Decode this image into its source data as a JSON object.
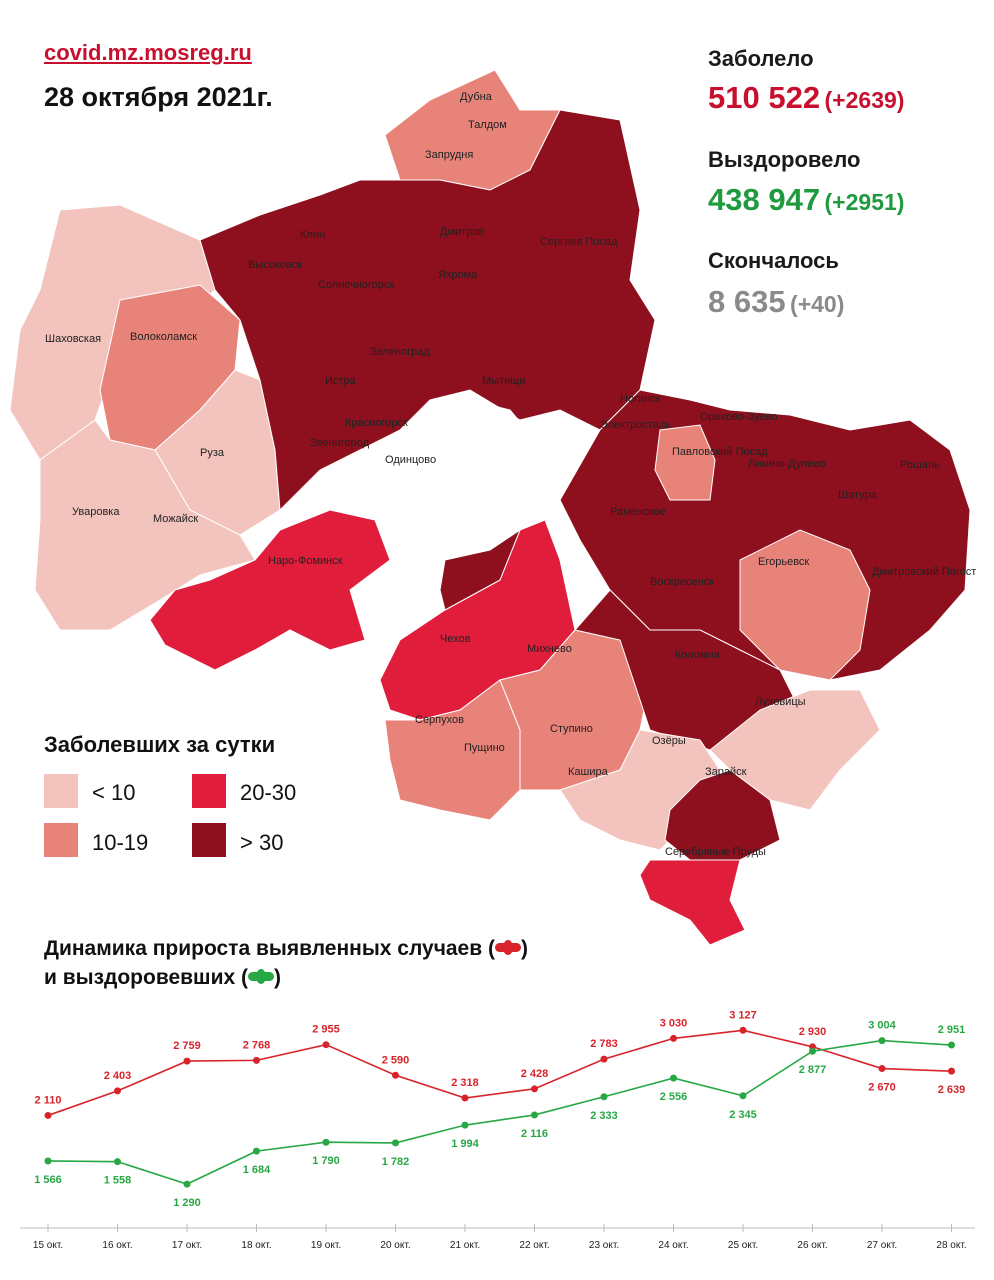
{
  "header": {
    "source": "covid.mz.mosreg.ru",
    "date": "28 октября 2021г."
  },
  "stats": {
    "infected": {
      "label": "Заболело",
      "value": "510 522",
      "delta": "(+2639)"
    },
    "recovered": {
      "label": "Выздоровело",
      "value": "438 947",
      "delta": "(+2951)"
    },
    "deaths": {
      "label": "Скончалось",
      "value": "8 635",
      "delta": "(+40)"
    }
  },
  "legend": {
    "title": "Заболевших за сутки",
    "items": [
      {
        "label": "< 10",
        "color": "#f2c4bd"
      },
      {
        "label": "10-19",
        "color": "#e8837a"
      },
      {
        "label": "20-30",
        "color": "#e01e3c"
      },
      {
        "label": "> 30",
        "color": "#8e0f1d"
      }
    ]
  },
  "map": {
    "labels": [
      "Дубна",
      "Запрудня",
      "Талдом",
      "Клин",
      "Дмитров",
      "Сергиев Посад",
      "Высоковск",
      "Яхрома",
      "Солнечногорск",
      "Шаховская",
      "Волоколамск",
      "Зеленоград",
      "Истра",
      "Мытищи",
      "Ногинск",
      "Красногорск",
      "Электросталь",
      "Орехово-Зуево",
      "Звенигород",
      "Одинцово",
      "Павловский Посад",
      "Ликино-Дулёво",
      "Рошаль",
      "Руза",
      "Шатура",
      "Уваровка",
      "Можайск",
      "Раменское",
      "Наро-Фоминск",
      "Егорьевск",
      "Дмитровский Погост",
      "Воскресенск",
      "Чехов",
      "Михнево",
      "Коломна",
      "Серпухов",
      "Луховицы",
      "Пущино",
      "Ступино",
      "Озёры",
      "Кашира",
      "Зарайск",
      "Серебряные Пруды"
    ]
  },
  "dynamics": {
    "title_line1": "Динамика прироста выявленных случаев (",
    "title_line1_end": ")",
    "title_line2": "и выздоровевших (",
    "title_line2_end": ")"
  },
  "chart_data": {
    "type": "line",
    "x": [
      "15 окт.",
      "16 окт.",
      "17 окт.",
      "18 окт.",
      "19 окт.",
      "20 окт.",
      "21 окт.",
      "22 окт.",
      "23 окт.",
      "24 окт.",
      "25 окт.",
      "26 окт.",
      "27 окт.",
      "28 окт."
    ],
    "series": [
      {
        "color": "#d8232a",
        "values": [
          2110,
          2403,
          2759,
          2768,
          2955,
          2590,
          2318,
          2428,
          2783,
          3030,
          3127,
          2930,
          2670,
          2639
        ],
        "labels": [
          "2 110",
          "2 403",
          "2 759",
          "2 768",
          "2 955",
          "2 590",
          "2 318",
          "2 428",
          "2 783",
          "3 030",
          "3 127",
          "2 930",
          "2 670",
          "2 639"
        ]
      },
      {
        "color": "#28a745",
        "values": [
          1566,
          1558,
          1290,
          1684,
          1790,
          1782,
          1994,
          2116,
          2333,
          2556,
          2345,
          2877,
          3004,
          2951
        ],
        "labels": [
          "1 566",
          "1 558",
          "1 290",
          "1 684",
          "1 790",
          "1 782",
          "1 994",
          "2 116",
          "2 333",
          "2 556",
          "2 345",
          "2 877",
          "3 004",
          "2 951"
        ]
      }
    ],
    "ylim": [
      1100,
      3250
    ],
    "grid": false
  }
}
